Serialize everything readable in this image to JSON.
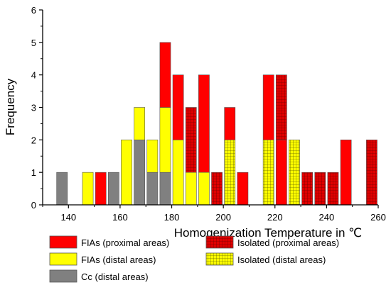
{
  "chart_data": {
    "type": "bar",
    "stacked": true,
    "xlabel": "Homogenization Temperature in ℃",
    "ylabel": "Frequency",
    "xlim": [
      130,
      260
    ],
    "ylim": [
      0,
      6
    ],
    "bin_width": 5,
    "x_ticks": [
      140,
      160,
      180,
      200,
      220,
      240,
      260
    ],
    "y_ticks": [
      0,
      1,
      2,
      3,
      4,
      5,
      6
    ],
    "grid": false,
    "legend_placement": "bottom",
    "series": [
      {
        "name": "Cc (distal areas)",
        "color": "#808080",
        "pattern": "solid",
        "points": [
          {
            "x": 137.5,
            "y": 1
          },
          {
            "x": 157.5,
            "y": 1
          },
          {
            "x": 167.5,
            "y": 2
          },
          {
            "x": 172.5,
            "y": 1
          },
          {
            "x": 177.5,
            "y": 1
          }
        ]
      },
      {
        "name": "FIAs (distal areas)",
        "color": "#ffff00",
        "pattern": "solid",
        "points": [
          {
            "x": 147.5,
            "y": 1
          },
          {
            "x": 162.5,
            "y": 2
          },
          {
            "x": 167.5,
            "y": 1
          },
          {
            "x": 172.5,
            "y": 1
          },
          {
            "x": 177.5,
            "y": 2
          },
          {
            "x": 182.5,
            "y": 2
          },
          {
            "x": 187.5,
            "y": 1
          },
          {
            "x": 192.5,
            "y": 1
          }
        ]
      },
      {
        "name": "Isolated (distal areas)",
        "color": "#ffff00",
        "pattern": "grid",
        "points": [
          {
            "x": 202.5,
            "y": 2
          },
          {
            "x": 217.5,
            "y": 2
          },
          {
            "x": 227.5,
            "y": 2
          }
        ]
      },
      {
        "name": "FIAs (proximal areas)",
        "color": "#ff0000",
        "pattern": "solid",
        "points": [
          {
            "x": 152.5,
            "y": 1
          },
          {
            "x": 177.5,
            "y": 2
          },
          {
            "x": 182.5,
            "y": 2
          },
          {
            "x": 192.5,
            "y": 3
          },
          {
            "x": 202.5,
            "y": 1
          },
          {
            "x": 207.5,
            "y": 1
          },
          {
            "x": 217.5,
            "y": 2
          },
          {
            "x": 222.5,
            "y": 2
          },
          {
            "x": 247.5,
            "y": 2
          }
        ]
      },
      {
        "name": "Isolated (proximal areas)",
        "color": "#e00000",
        "pattern": "grid",
        "points": [
          {
            "x": 187.5,
            "y": 2
          },
          {
            "x": 197.5,
            "y": 1
          },
          {
            "x": 222.5,
            "y": 2
          },
          {
            "x": 232.5,
            "y": 1
          },
          {
            "x": 237.5,
            "y": 1
          },
          {
            "x": 242.5,
            "y": 1
          },
          {
            "x": 257.5,
            "y": 2
          }
        ]
      }
    ],
    "stack_order": [
      "Cc (distal areas)",
      "FIAs (distal areas)",
      "Isolated (distal areas)",
      "FIAs (proximal areas)",
      "Isolated (proximal areas)"
    ],
    "legend": [
      {
        "label": "FIAs (proximal areas)",
        "color": "#ff0000",
        "pattern": "solid"
      },
      {
        "label": "Isolated (proximal areas)",
        "color": "#e00000",
        "pattern": "grid"
      },
      {
        "label": "FIAs (distal areas)",
        "color": "#ffff00",
        "pattern": "solid"
      },
      {
        "label": "Isolated (distal areas)",
        "color": "#ffff00",
        "pattern": "grid"
      },
      {
        "label": "Cc (distal areas)",
        "color": "#808080",
        "pattern": "solid"
      }
    ]
  }
}
